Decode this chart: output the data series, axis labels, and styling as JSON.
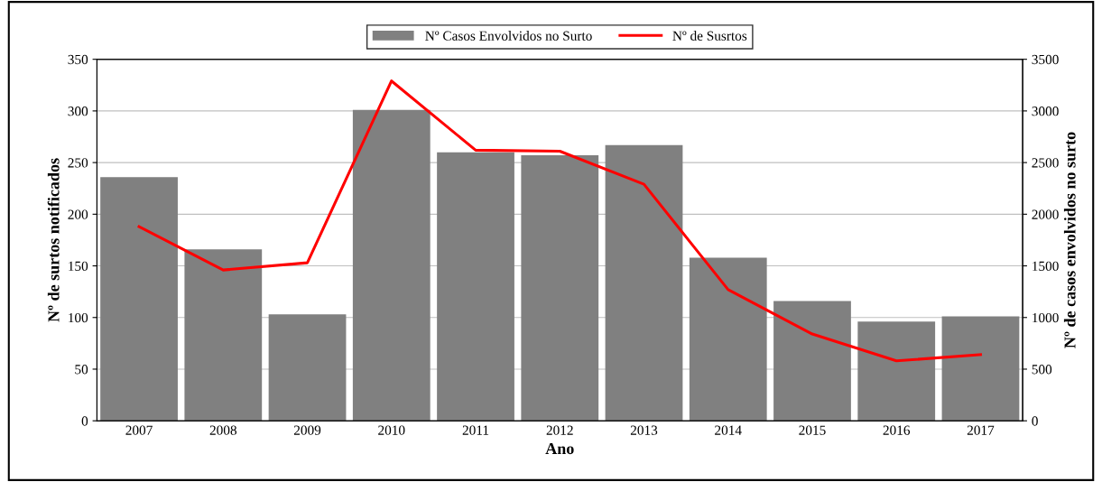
{
  "chart_data": {
    "type": "bar",
    "xlabel": "Ano",
    "ylabel": "Nº de surtos notificados",
    "y2label": "Nº de casos envolvidos no surto",
    "categories": [
      "2007",
      "2008",
      "2009",
      "2010",
      "2011",
      "2012",
      "2013",
      "2014",
      "2015",
      "2016",
      "2017"
    ],
    "series": [
      {
        "name": "Nº Casos Envolvidos no Surto",
        "axis": "y2",
        "color": "#808080",
        "values": [
          2360,
          1660,
          1030,
          3010,
          2600,
          2570,
          2670,
          1580,
          1160,
          960,
          1010
        ]
      },
      {
        "name": "Nº de Susrtos",
        "type": "line",
        "axis": "y",
        "color": "#ff0000",
        "values": [
          188,
          146,
          153,
          329,
          262,
          261,
          229,
          127,
          84,
          58,
          64
        ]
      }
    ],
    "ylim": [
      0,
      350
    ],
    "yticks": [
      0,
      50,
      100,
      150,
      200,
      250,
      300,
      350
    ],
    "y2lim": [
      0,
      3500
    ],
    "y2ticks": [
      0,
      500,
      1000,
      1500,
      2000,
      2500,
      3000,
      3500
    ],
    "grid": "y",
    "legend": "top",
    "marker": "none",
    "line_style": "solid"
  }
}
